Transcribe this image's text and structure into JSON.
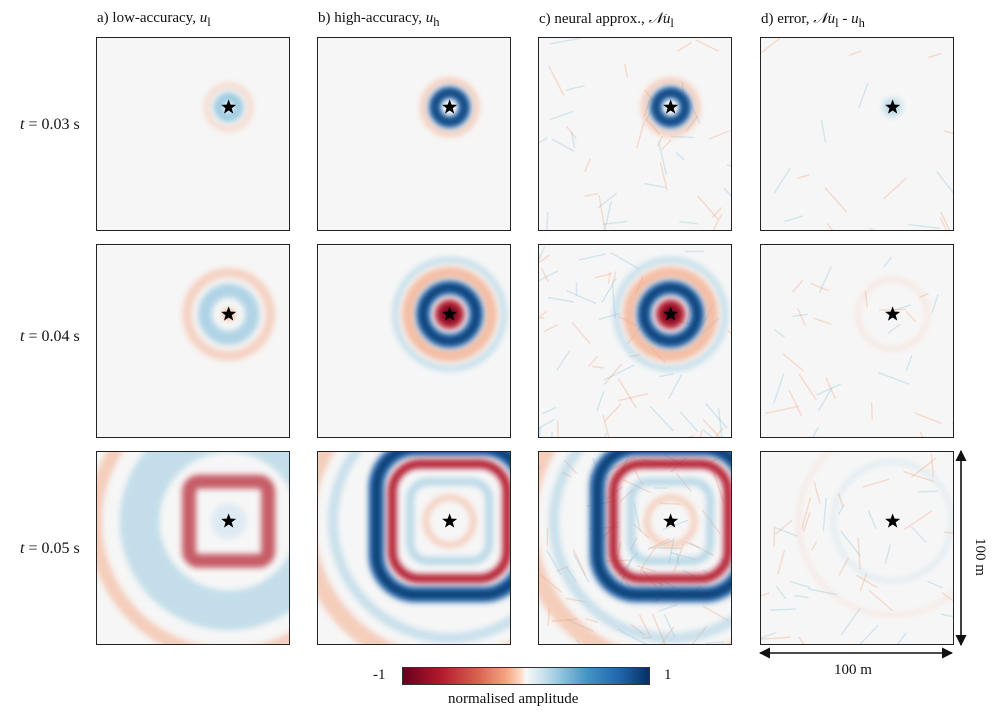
{
  "columns": [
    {
      "prefix": "a) low-accuracy, ",
      "symbol": "u",
      "sub": "l"
    },
    {
      "prefix": "b) high-accuracy, ",
      "symbol": "u",
      "sub": "h"
    },
    {
      "prefix": "c) neural approx., ",
      "symbol": "𝒩u",
      "sub": "l"
    },
    {
      "prefix": "d) error, ",
      "symbol": "𝒩u",
      "sub": "l",
      "suffix": " - ",
      "symbol2": "u",
      "sub2": "h"
    }
  ],
  "rows": [
    {
      "var": "t",
      "eq": " = 0.03 s"
    },
    {
      "var": "t",
      "eq": " = 0.04 s"
    },
    {
      "var": "t",
      "eq": " = 0.05 s"
    }
  ],
  "colorbar": {
    "min_label": "-1",
    "max_label": "1",
    "label": "normalised amplitude"
  },
  "scale": {
    "horizontal": "100 m",
    "vertical": "100 m"
  },
  "colors": {
    "negative": "#67001f",
    "neutral": "#f7f7f7",
    "positive": "#053061"
  }
}
